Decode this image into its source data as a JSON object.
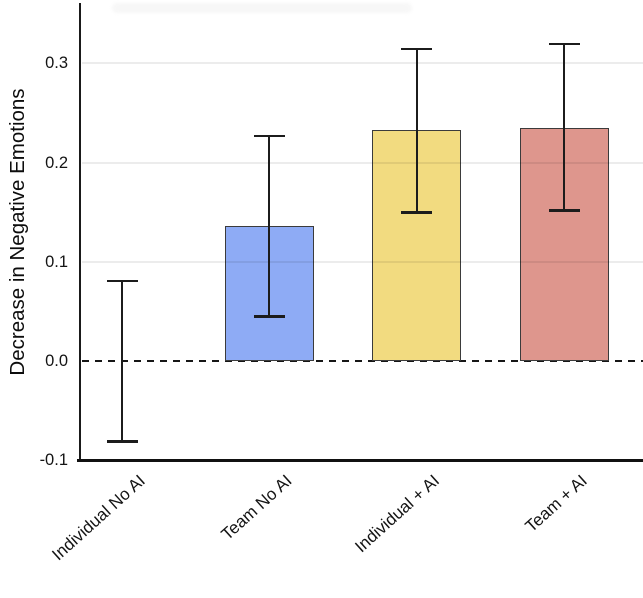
{
  "figure": {
    "background": "#ffffff"
  },
  "chart_data": {
    "type": "bar",
    "title": "",
    "xlabel": "",
    "ylabel": "Decrease in Negative Emotions",
    "categories": [
      "Individual No AI",
      "Team No AI",
      "Individual + AI",
      "Team + AI"
    ],
    "values": [
      0.0,
      0.136,
      0.233,
      0.235
    ],
    "error_bars": {
      "lower": [
        -0.081,
        0.045,
        0.15,
        0.152
      ],
      "upper": [
        0.081,
        0.227,
        0.315,
        0.32
      ]
    },
    "bar_colors": [
      "none",
      "#8eabf5",
      "#f2db80",
      "#de968d"
    ],
    "bar_border_color": "#3b3b3b",
    "error_bar_color": "#1c1c1c",
    "zero_line": {
      "value": 0.0,
      "style": "dashed",
      "color": "#161616"
    },
    "grid": "horizontal",
    "grid_color": "#ebebeb",
    "legend": "none",
    "ylim": [
      -0.101,
      0.361
    ],
    "yticks": [
      -0.1,
      0.0,
      0.1,
      0.2,
      0.3
    ],
    "ytick_labels": [
      "-0.1",
      "0.0",
      "0.1",
      "0.2",
      "0.3"
    ]
  }
}
